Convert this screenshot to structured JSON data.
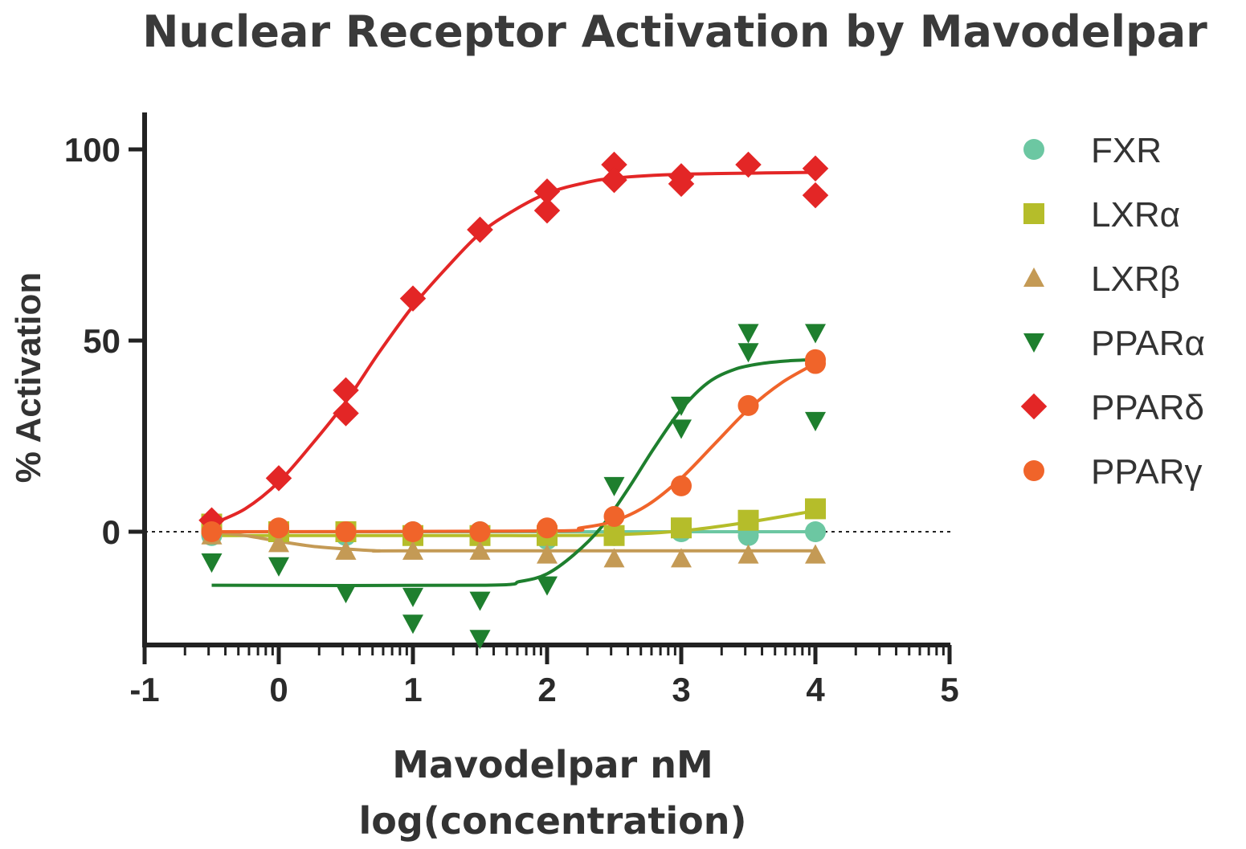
{
  "chart_data": {
    "type": "scatter",
    "title": "Nuclear Receptor Activation by Mavodelpar",
    "xlabel": "Mavodelpar nM",
    "xlabel_line2": "log(concentration)",
    "ylabel": "% Activation",
    "xlim": [
      -1,
      5
    ],
    "ylim": [
      -30,
      110
    ],
    "xticks": [
      "-1",
      "0",
      "1",
      "2",
      "3",
      "4",
      "5"
    ],
    "yticks": [
      "0",
      "50",
      "100"
    ],
    "zero_line": "dotted",
    "legend_position": "right",
    "series": [
      {
        "name": "FXR",
        "marker": "circle",
        "color": "#6cc7a2",
        "points": [
          [
            -0.5,
            1
          ],
          [
            -0.5,
            -1
          ],
          [
            0,
            0
          ],
          [
            0.5,
            -1
          ],
          [
            1,
            0
          ],
          [
            1.5,
            0
          ],
          [
            2,
            -2
          ],
          [
            2.5,
            -1
          ],
          [
            3,
            0
          ],
          [
            3.5,
            -1
          ],
          [
            4,
            0
          ]
        ],
        "fit": [
          [
            -0.5,
            0
          ],
          [
            4,
            0
          ]
        ]
      },
      {
        "name": "LXRα",
        "marker": "square",
        "color": "#b5bd2a",
        "points": [
          [
            -0.5,
            2
          ],
          [
            0,
            0
          ],
          [
            0.5,
            0
          ],
          [
            1,
            -1
          ],
          [
            1.5,
            -1
          ],
          [
            2,
            -1
          ],
          [
            2.5,
            -1
          ],
          [
            3,
            1
          ],
          [
            3.5,
            3
          ],
          [
            4,
            6
          ]
        ],
        "fit": [
          [
            -0.5,
            -1
          ],
          [
            0,
            -1
          ],
          [
            0.5,
            -1
          ],
          [
            1,
            -1
          ],
          [
            1.5,
            -1
          ],
          [
            2,
            -1
          ],
          [
            2.5,
            -0.8
          ],
          [
            3,
            0.2
          ],
          [
            3.5,
            2.5
          ],
          [
            4,
            5.5
          ]
        ]
      },
      {
        "name": "LXRβ",
        "marker": "triangle-up",
        "color": "#c49a55",
        "points": [
          [
            -0.5,
            -1
          ],
          [
            0,
            -3
          ],
          [
            0.5,
            -5
          ],
          [
            1,
            -5
          ],
          [
            1.5,
            -5
          ],
          [
            2,
            -6
          ],
          [
            2.5,
            -7
          ],
          [
            3,
            -7
          ],
          [
            3.5,
            -6
          ],
          [
            4,
            -6
          ]
        ],
        "fit": [
          [
            -0.5,
            0
          ],
          [
            -0.25,
            -1
          ],
          [
            0,
            -2.5
          ],
          [
            0.25,
            -3.8
          ],
          [
            0.5,
            -4.5
          ],
          [
            0.75,
            -5
          ],
          [
            1,
            -5
          ],
          [
            4,
            -5
          ]
        ]
      },
      {
        "name": "PPARα",
        "marker": "triangle-down",
        "color": "#1e7f2e",
        "points": [
          [
            -0.5,
            -8
          ],
          [
            0,
            -9
          ],
          [
            0.5,
            -16
          ],
          [
            1,
            -17
          ],
          [
            1,
            -24
          ],
          [
            1.5,
            -18
          ],
          [
            1.5,
            -28
          ],
          [
            2,
            -14
          ],
          [
            2.5,
            12
          ],
          [
            3,
            33
          ],
          [
            3,
            27
          ],
          [
            3.5,
            52
          ],
          [
            3.5,
            47
          ],
          [
            4,
            52
          ],
          [
            4,
            29
          ]
        ],
        "fit": [
          [
            -0.5,
            -14
          ],
          [
            1.5,
            -14
          ],
          [
            1.8,
            -13
          ],
          [
            2.0,
            -11
          ],
          [
            2.2,
            -6
          ],
          [
            2.4,
            1
          ],
          [
            2.6,
            11
          ],
          [
            2.8,
            22
          ],
          [
            3.0,
            32
          ],
          [
            3.2,
            39
          ],
          [
            3.4,
            42.5
          ],
          [
            3.6,
            44
          ],
          [
            3.8,
            44.7
          ],
          [
            4,
            45
          ]
        ]
      },
      {
        "name": "PPARδ",
        "marker": "diamond",
        "color": "#e32626",
        "points": [
          [
            -0.5,
            3
          ],
          [
            0,
            14
          ],
          [
            0.5,
            37
          ],
          [
            0.5,
            31
          ],
          [
            1,
            61
          ],
          [
            1.5,
            79
          ],
          [
            1.5,
            79
          ],
          [
            2,
            89
          ],
          [
            2,
            84
          ],
          [
            2.5,
            96
          ],
          [
            2.5,
            92
          ],
          [
            3,
            93
          ],
          [
            3,
            91
          ],
          [
            3.5,
            96
          ],
          [
            4,
            95
          ],
          [
            4,
            88
          ]
        ],
        "fit": [
          [
            -0.5,
            2
          ],
          [
            -0.25,
            6
          ],
          [
            0,
            13
          ],
          [
            0.25,
            23
          ],
          [
            0.5,
            34
          ],
          [
            0.75,
            47
          ],
          [
            1,
            59
          ],
          [
            1.25,
            69
          ],
          [
            1.5,
            78
          ],
          [
            1.75,
            84
          ],
          [
            2,
            88.5
          ],
          [
            2.25,
            91
          ],
          [
            2.5,
            92.5
          ],
          [
            3,
            93.5
          ],
          [
            4,
            94
          ]
        ]
      },
      {
        "name": "PPARγ",
        "marker": "circle",
        "color": "#f0642a",
        "points": [
          [
            -0.5,
            0
          ],
          [
            0,
            1
          ],
          [
            0.5,
            0
          ],
          [
            1,
            0
          ],
          [
            1.5,
            0
          ],
          [
            2,
            1
          ],
          [
            2.5,
            4
          ],
          [
            3,
            12
          ],
          [
            3.5,
            33
          ],
          [
            4,
            45
          ],
          [
            4,
            44
          ]
        ],
        "fit": [
          [
            -0.5,
            0
          ],
          [
            2,
            0.2
          ],
          [
            2.25,
            1
          ],
          [
            2.5,
            2.8
          ],
          [
            2.75,
            7
          ],
          [
            3.0,
            14
          ],
          [
            3.25,
            23
          ],
          [
            3.5,
            32
          ],
          [
            3.75,
            39
          ],
          [
            4,
            44
          ]
        ]
      }
    ]
  }
}
